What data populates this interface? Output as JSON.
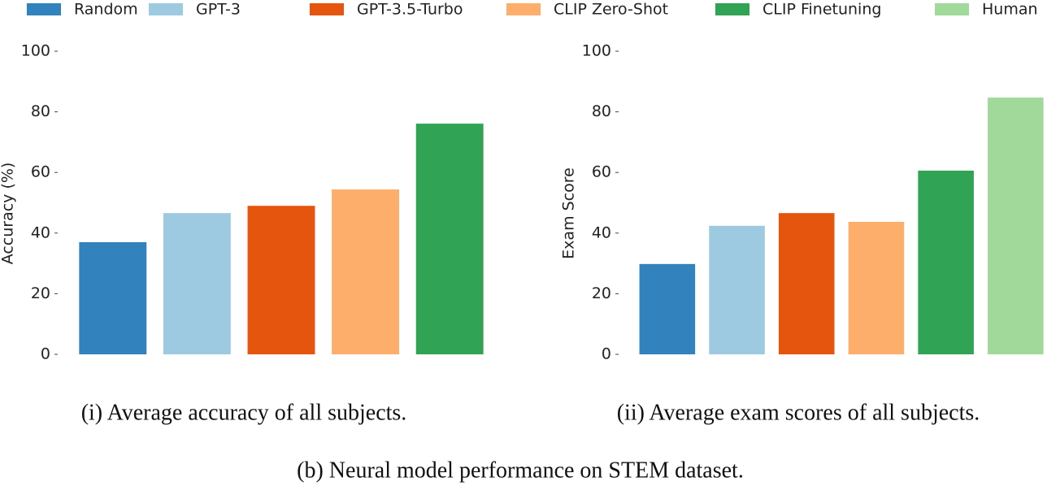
{
  "legend": {
    "items": [
      {
        "name": "Random",
        "color": "#3182bd"
      },
      {
        "name": "GPT-3",
        "color": "#9ecae1"
      },
      {
        "name": "GPT-3.5-Turbo",
        "color": "#e6550d"
      },
      {
        "name": "CLIP Zero-Shot",
        "color": "#fdae6b"
      },
      {
        "name": "CLIP Finetuning",
        "color": "#31a354"
      },
      {
        "name": "Human",
        "color": "#a1d99b"
      }
    ]
  },
  "chart_data": [
    {
      "type": "bar",
      "y_label": "Accuracy (%)",
      "values": [
        37,
        46.6,
        49,
        54.4,
        76.1
      ],
      "ylim": [
        0,
        100
      ],
      "yticks": [
        0,
        20,
        40,
        60,
        80,
        100
      ],
      "caption": "(i) Average accuracy of all subjects."
    },
    {
      "type": "bar",
      "y_label": "Exam Score",
      "values": [
        29.8,
        42.4,
        46.6,
        43.7,
        60.6,
        84.7
      ],
      "ylim": [
        0,
        100
      ],
      "yticks": [
        0,
        20,
        40,
        60,
        80,
        100
      ],
      "caption": "(ii) Average exam scores of all subjects."
    }
  ],
  "caption": "(b) Neural model performance on STEM dataset."
}
